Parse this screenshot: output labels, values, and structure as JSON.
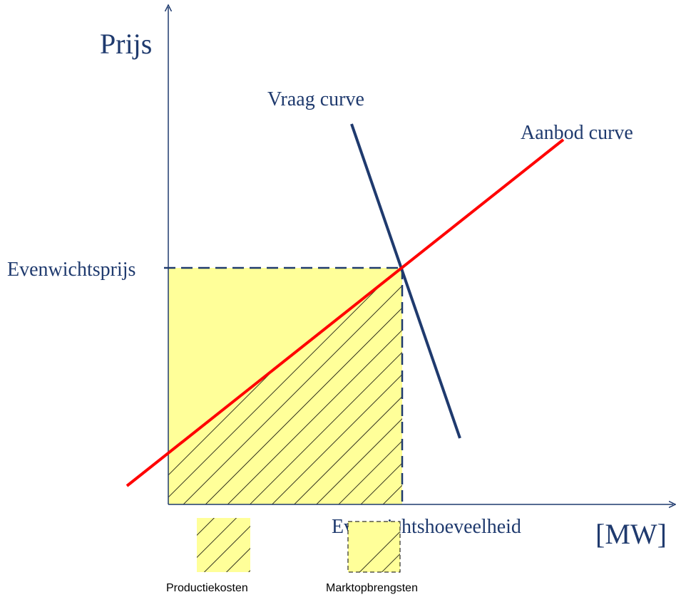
{
  "axes": {
    "y_label": "Prijs",
    "x_label": "[MW]"
  },
  "curves": {
    "demand": "Vraag curve",
    "supply": "Aanbod curve"
  },
  "equilibrium": {
    "price": "Evenwichtsprijs",
    "quantity": "Evenwichtshoeveelheid"
  },
  "legend": {
    "production_costs": "Productiekosten",
    "market_revenue": "Marktopbrengsten"
  }
}
